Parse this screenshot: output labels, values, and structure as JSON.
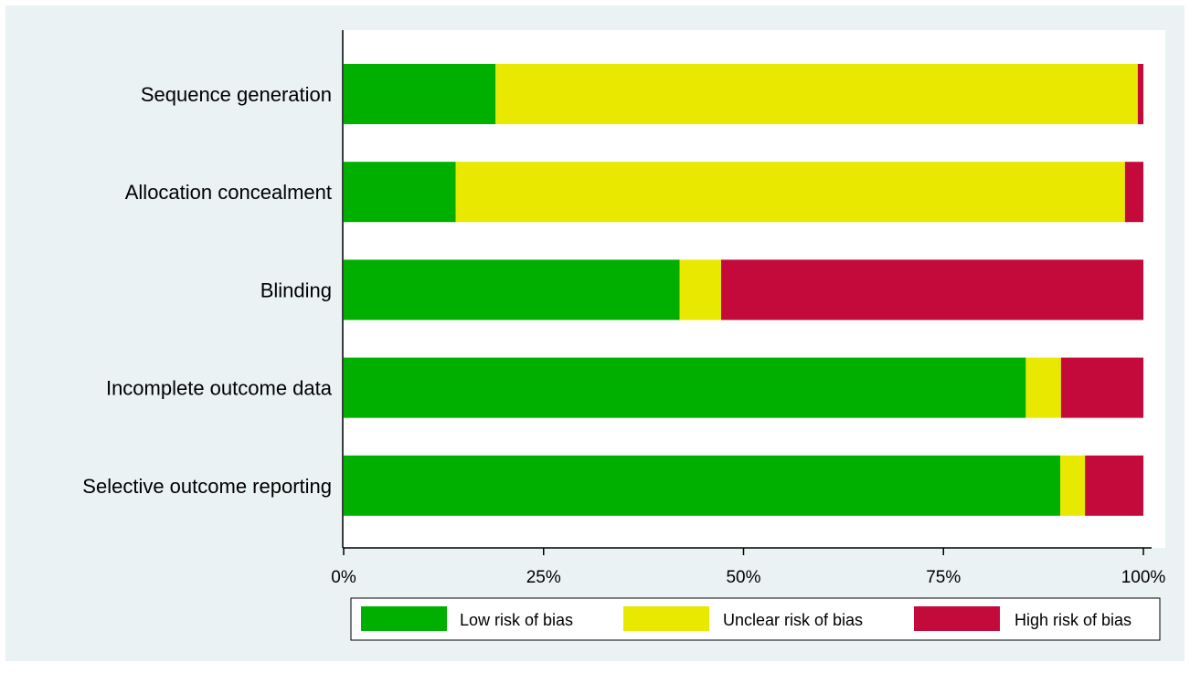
{
  "chart_data": {
    "type": "bar",
    "orientation": "horizontal",
    "stacked": true,
    "percent": true,
    "categories": [
      "Sequence generation",
      "Allocation concealment",
      "Blinding",
      "Incomplete outcome data",
      "Selective outcome reporting"
    ],
    "series": [
      {
        "name": "Low risk of bias",
        "color": "#00b000",
        "values": [
          19,
          14,
          42,
          85.3,
          89.6
        ]
      },
      {
        "name": "Unclear risk of bias",
        "color": "#e8e800",
        "values": [
          80.3,
          83.7,
          5.2,
          4.4,
          3.1
        ]
      },
      {
        "name": "High risk of bias",
        "color": "#c30a3a",
        "values": [
          0.7,
          2.3,
          52.8,
          10.3,
          7.3
        ]
      }
    ],
    "xlim": [
      0,
      100
    ],
    "xticks": [
      0,
      25,
      50,
      75,
      100
    ],
    "xtick_labels": [
      "0%",
      "25%",
      "50%",
      "75%",
      "100%"
    ],
    "grid": false,
    "legend_position": "bottom",
    "background_color": "#eaf2f3",
    "plot_background_color": "#ffffff"
  }
}
